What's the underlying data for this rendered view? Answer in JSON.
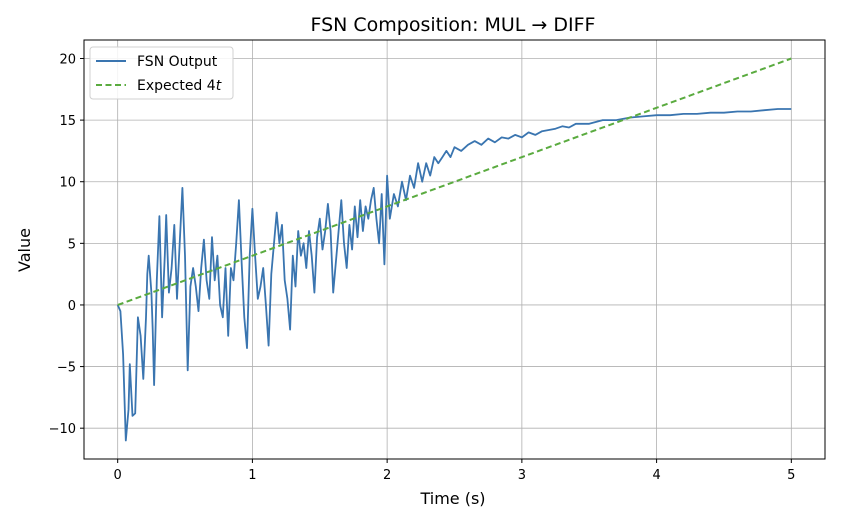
{
  "chart_data": {
    "type": "line",
    "title": "FSN Composition: MUL → DIFF",
    "xlabel": "Time (s)",
    "ylabel": "Value",
    "xlim": [
      -0.25,
      5.25
    ],
    "ylim": [
      -12.5,
      21.5
    ],
    "xticks": [
      0,
      1,
      2,
      3,
      4,
      5
    ],
    "yticks": [
      -10,
      -5,
      0,
      5,
      10,
      15,
      20
    ],
    "xtick_labels": [
      "0",
      "1",
      "2",
      "3",
      "4",
      "5"
    ],
    "ytick_labels": [
      "−10",
      "−5",
      "0",
      "5",
      "10",
      "15",
      "20"
    ],
    "grid": true,
    "legend_position": "top-left",
    "colors": {
      "fsn": "#3a75b0",
      "expected": "#5aab3f"
    },
    "series": [
      {
        "name": "FSN Output",
        "style": "solid",
        "points": [
          [
            0.0,
            0.0
          ],
          [
            0.02,
            -0.5
          ],
          [
            0.04,
            -4.0
          ],
          [
            0.06,
            -11.0
          ],
          [
            0.08,
            -8.5
          ],
          [
            0.09,
            -4.8
          ],
          [
            0.11,
            -9.0
          ],
          [
            0.13,
            -8.8
          ],
          [
            0.15,
            -1.0
          ],
          [
            0.17,
            -2.5
          ],
          [
            0.19,
            -6.0
          ],
          [
            0.21,
            -1.0
          ],
          [
            0.22,
            2.5
          ],
          [
            0.23,
            4.0
          ],
          [
            0.25,
            1.0
          ],
          [
            0.26,
            -2.0
          ],
          [
            0.27,
            -6.5
          ],
          [
            0.29,
            2.0
          ],
          [
            0.31,
            7.2
          ],
          [
            0.33,
            -1.0
          ],
          [
            0.35,
            4.0
          ],
          [
            0.36,
            7.3
          ],
          [
            0.38,
            1.0
          ],
          [
            0.4,
            3.0
          ],
          [
            0.42,
            6.5
          ],
          [
            0.44,
            0.5
          ],
          [
            0.46,
            5.0
          ],
          [
            0.48,
            9.5
          ],
          [
            0.5,
            4.0
          ],
          [
            0.52,
            -5.3
          ],
          [
            0.54,
            1.5
          ],
          [
            0.56,
            3.0
          ],
          [
            0.58,
            1.5
          ],
          [
            0.6,
            -0.5
          ],
          [
            0.62,
            3.0
          ],
          [
            0.64,
            5.3
          ],
          [
            0.66,
            2.0
          ],
          [
            0.68,
            0.5
          ],
          [
            0.7,
            5.5
          ],
          [
            0.72,
            2.0
          ],
          [
            0.74,
            4.0
          ],
          [
            0.76,
            0.0
          ],
          [
            0.78,
            -1.0
          ],
          [
            0.8,
            3.0
          ],
          [
            0.82,
            -2.5
          ],
          [
            0.84,
            3.0
          ],
          [
            0.86,
            2.0
          ],
          [
            0.88,
            5.0
          ],
          [
            0.9,
            8.5
          ],
          [
            0.92,
            3.5
          ],
          [
            0.94,
            -1.0
          ],
          [
            0.96,
            -3.5
          ],
          [
            0.98,
            4.0
          ],
          [
            1.0,
            7.8
          ],
          [
            1.02,
            4.0
          ],
          [
            1.04,
            0.5
          ],
          [
            1.06,
            1.5
          ],
          [
            1.08,
            3.0
          ],
          [
            1.1,
            0.0
          ],
          [
            1.12,
            -3.3
          ],
          [
            1.14,
            2.5
          ],
          [
            1.16,
            5.0
          ],
          [
            1.18,
            7.5
          ],
          [
            1.2,
            5.0
          ],
          [
            1.22,
            6.5
          ],
          [
            1.24,
            2.0
          ],
          [
            1.26,
            0.5
          ],
          [
            1.28,
            -2.0
          ],
          [
            1.3,
            4.0
          ],
          [
            1.32,
            1.5
          ],
          [
            1.34,
            6.0
          ],
          [
            1.36,
            4.0
          ],
          [
            1.38,
            5.0
          ],
          [
            1.4,
            3.0
          ],
          [
            1.42,
            6.0
          ],
          [
            1.44,
            4.0
          ],
          [
            1.46,
            1.0
          ],
          [
            1.48,
            5.5
          ],
          [
            1.5,
            7.0
          ],
          [
            1.52,
            4.5
          ],
          [
            1.54,
            6.0
          ],
          [
            1.56,
            8.2
          ],
          [
            1.58,
            6.0
          ],
          [
            1.6,
            1.0
          ],
          [
            1.62,
            3.5
          ],
          [
            1.64,
            6.0
          ],
          [
            1.66,
            8.5
          ],
          [
            1.68,
            5.0
          ],
          [
            1.7,
            3.0
          ],
          [
            1.72,
            6.5
          ],
          [
            1.74,
            4.5
          ],
          [
            1.76,
            8.0
          ],
          [
            1.78,
            5.5
          ],
          [
            1.8,
            8.5
          ],
          [
            1.82,
            6.0
          ],
          [
            1.84,
            8.0
          ],
          [
            1.86,
            7.0
          ],
          [
            1.88,
            8.5
          ],
          [
            1.9,
            9.5
          ],
          [
            1.92,
            7.0
          ],
          [
            1.94,
            5.0
          ],
          [
            1.96,
            9.0
          ],
          [
            1.98,
            3.3
          ],
          [
            2.0,
            10.5
          ],
          [
            2.02,
            7.0
          ],
          [
            2.05,
            9.0
          ],
          [
            2.08,
            8.0
          ],
          [
            2.11,
            10.0
          ],
          [
            2.14,
            8.5
          ],
          [
            2.17,
            10.5
          ],
          [
            2.2,
            9.5
          ],
          [
            2.23,
            11.5
          ],
          [
            2.26,
            10.0
          ],
          [
            2.29,
            11.5
          ],
          [
            2.32,
            10.5
          ],
          [
            2.35,
            12.0
          ],
          [
            2.38,
            11.5
          ],
          [
            2.41,
            12.0
          ],
          [
            2.44,
            12.5
          ],
          [
            2.47,
            12.0
          ],
          [
            2.5,
            12.8
          ],
          [
            2.55,
            12.5
          ],
          [
            2.6,
            13.0
          ],
          [
            2.65,
            13.3
          ],
          [
            2.7,
            13.0
          ],
          [
            2.75,
            13.5
          ],
          [
            2.8,
            13.2
          ],
          [
            2.85,
            13.6
          ],
          [
            2.9,
            13.5
          ],
          [
            2.95,
            13.8
          ],
          [
            3.0,
            13.6
          ],
          [
            3.05,
            14.0
          ],
          [
            3.1,
            13.8
          ],
          [
            3.15,
            14.1
          ],
          [
            3.2,
            14.2
          ],
          [
            3.25,
            14.3
          ],
          [
            3.3,
            14.5
          ],
          [
            3.35,
            14.4
          ],
          [
            3.4,
            14.7
          ],
          [
            3.5,
            14.7
          ],
          [
            3.6,
            15.0
          ],
          [
            3.7,
            15.0
          ],
          [
            3.8,
            15.2
          ],
          [
            3.9,
            15.3
          ],
          [
            4.0,
            15.4
          ],
          [
            4.1,
            15.4
          ],
          [
            4.2,
            15.5
          ],
          [
            4.3,
            15.5
          ],
          [
            4.4,
            15.6
          ],
          [
            4.5,
            15.6
          ],
          [
            4.6,
            15.7
          ],
          [
            4.7,
            15.7
          ],
          [
            4.8,
            15.8
          ],
          [
            4.9,
            15.9
          ],
          [
            5.0,
            15.9
          ]
        ]
      },
      {
        "name": "Expected 4",
        "name_suffix_italic": "t",
        "style": "dashed",
        "points": [
          [
            0,
            0
          ],
          [
            5,
            20
          ]
        ]
      }
    ]
  }
}
